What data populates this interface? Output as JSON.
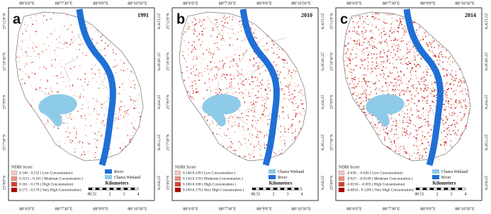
{
  "panels": [
    {
      "label": "a",
      "year": "1991",
      "top_ticks": [
        "88°6'0\"E",
        "88°7'30\"E",
        "88°9'0\"E",
        "88°10'30\"E"
      ],
      "bottom_ticks": [
        "88°6'0\"E",
        "88°7'30\"E",
        "88°9'0\"E",
        "88°10'30\"E"
      ],
      "left_ticks": [
        "25°12'0\"N",
        "25°10'30\"N",
        "25°9'0\"N",
        "25°7'30\"N",
        "25°6'0\"N"
      ],
      "right_ticks": [
        "25°12'0\"N",
        "25°10'30\"N",
        "25°9'0\"N",
        "25°7'30\"N",
        "25°6'0\"N"
      ],
      "legend": {
        "title": "NDBI Score",
        "items": [
          {
            "label": "0.140 - 0.152 ( Low Concentration)",
            "color": "#f3c9c4"
          },
          {
            "label": "0.1521 - 0.161 ( Moderate Concentration )",
            "color": "#ea8e84"
          },
          {
            "label": "0.161 - 0.170 ( High Concentration)",
            "color": "#d8412e"
          },
          {
            "label": "0.171 - 0.179 ( Very High Concentration)",
            "color": "#b00000"
          }
        ]
      },
      "map_legend": [
        {
          "label": "River",
          "color": "#1f6fd6"
        },
        {
          "label": "Chatra Wetland",
          "color": "#8ecbe8"
        }
      ],
      "scale": {
        "title": "Kilometers",
        "ticks": [
          "0",
          "0.5",
          "1",
          "2",
          "3",
          "4"
        ]
      }
    },
    {
      "label": "b",
      "year": "2010",
      "top_ticks": [
        "88°6'0\"E",
        "88°7'30\"E",
        "88°9'0\"E",
        "88°10'30\"E"
      ],
      "bottom_ticks": [
        "88°6'0\"E",
        "88°7'30\"E",
        "88°9'0\"E",
        "88°10'30\"E"
      ],
      "left_ticks": [
        "25°12'0\"N",
        "25°10'30\"N",
        "25°9'0\"N",
        "25°7'30\"N",
        "25°6'0\"N"
      ],
      "right_ticks": [
        "25°12'0\"N",
        "25°10'30\"N",
        "25°9'0\"N",
        "25°7'30\"N",
        "25°6'0\"N"
      ],
      "legend": {
        "title": "NDBI Score",
        "items": [
          {
            "label": "0.140-0.149 ( Low Concentration )",
            "color": "#f3c9c4"
          },
          {
            "label": "0.150-0.159 ( Moderate Concentration )",
            "color": "#ea8e84"
          },
          {
            "label": "0.160-0.168 ( High Concentration )",
            "color": "#d8412e"
          },
          {
            "label": "0.169-0.179 ( Very High Concentration )",
            "color": "#b00000"
          }
        ]
      },
      "map_legend": [
        {
          "label": "Chatra Wetland",
          "color": "#8ecbe8"
        },
        {
          "label": "River",
          "color": "#1f6fd6"
        }
      ],
      "scale": {
        "title": "Kilometers",
        "ticks": [
          "0",
          "0.5",
          "1",
          "2",
          "3",
          "4"
        ]
      }
    },
    {
      "label": "c",
      "year": "2014",
      "top_ticks": [
        "88°6'0\"E",
        "88°7'30\"E",
        "88°9'0\"E",
        "88°10'30\"E"
      ],
      "bottom_ticks": [
        "88°6'0\"E",
        "88°7'30\"E",
        "88°9'0\"E",
        "88°10'30\"E"
      ],
      "left_ticks": [
        "25°12'0\"N",
        "25°10'30\"N",
        "25°9'0\"N",
        "25°7'30\"N",
        "25°6'0\"N"
      ],
      "right_ticks": [
        "25°12'0\"N",
        "25°10'30\"N",
        "25°9'0\"N",
        "25°7'30\"N",
        "25°6'0\"N"
      ],
      "legend": {
        "title": "NDBI Score",
        "items": [
          {
            "label": "-0.038 - -0.026 ( Low Concentration)",
            "color": "#f3c9c4"
          },
          {
            "label": "-0.027 - -0.0149 ( Moderate Concentration )",
            "color": "#ea8e84"
          },
          {
            "label": "-0.0150 - -0.003 ( High Concentration)",
            "color": "#d8412e"
          },
          {
            "label": "-0.0033 - 0.1285 ( Very High Concentration)",
            "color": "#b00000"
          }
        ]
      },
      "map_legend": [
        {
          "label": "Chatra Wetland",
          "color": "#8ecbe8"
        },
        {
          "label": "River",
          "color": "#1f6fd6"
        }
      ],
      "scale": {
        "title": "Kilometers",
        "ticks": [
          "0",
          "0.5",
          "1",
          "2",
          "3",
          "4"
        ]
      }
    }
  ]
}
